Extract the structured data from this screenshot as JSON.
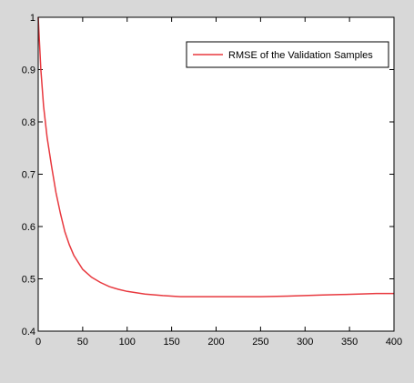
{
  "window": {
    "background": "#d8d8d8",
    "plot_background": "#ffffff"
  },
  "chart_data": {
    "type": "line",
    "xlim": [
      0,
      400
    ],
    "ylim": [
      0.4,
      1.0
    ],
    "x_ticks": [
      0,
      50,
      100,
      150,
      200,
      250,
      300,
      350,
      400
    ],
    "y_ticks": [
      0.4,
      0.5,
      0.6,
      0.7,
      0.8,
      0.9,
      1.0
    ],
    "x_tick_labels": [
      "0",
      "50",
      "100",
      "150",
      "200",
      "250",
      "300",
      "350",
      "400"
    ],
    "y_tick_labels": [
      "0.4",
      "0.5",
      "0.6",
      "0.7",
      "0.8",
      "0.9",
      "1"
    ],
    "grid": false,
    "legend_position": "top-right",
    "series": [
      {
        "name": "RMSE of the Validation Samples",
        "color": "#e8393f",
        "x": [
          0,
          3,
          6,
          10,
          15,
          20,
          25,
          30,
          35,
          40,
          50,
          60,
          70,
          80,
          90,
          100,
          120,
          140,
          160,
          180,
          200,
          220,
          250,
          280,
          300,
          320,
          340,
          360,
          380,
          400
        ],
        "y": [
          1.0,
          0.9,
          0.83,
          0.77,
          0.715,
          0.665,
          0.625,
          0.59,
          0.565,
          0.545,
          0.518,
          0.503,
          0.493,
          0.485,
          0.48,
          0.476,
          0.471,
          0.468,
          0.466,
          0.466,
          0.466,
          0.466,
          0.466,
          0.467,
          0.468,
          0.469,
          0.47,
          0.471,
          0.472,
          0.472
        ]
      }
    ]
  }
}
